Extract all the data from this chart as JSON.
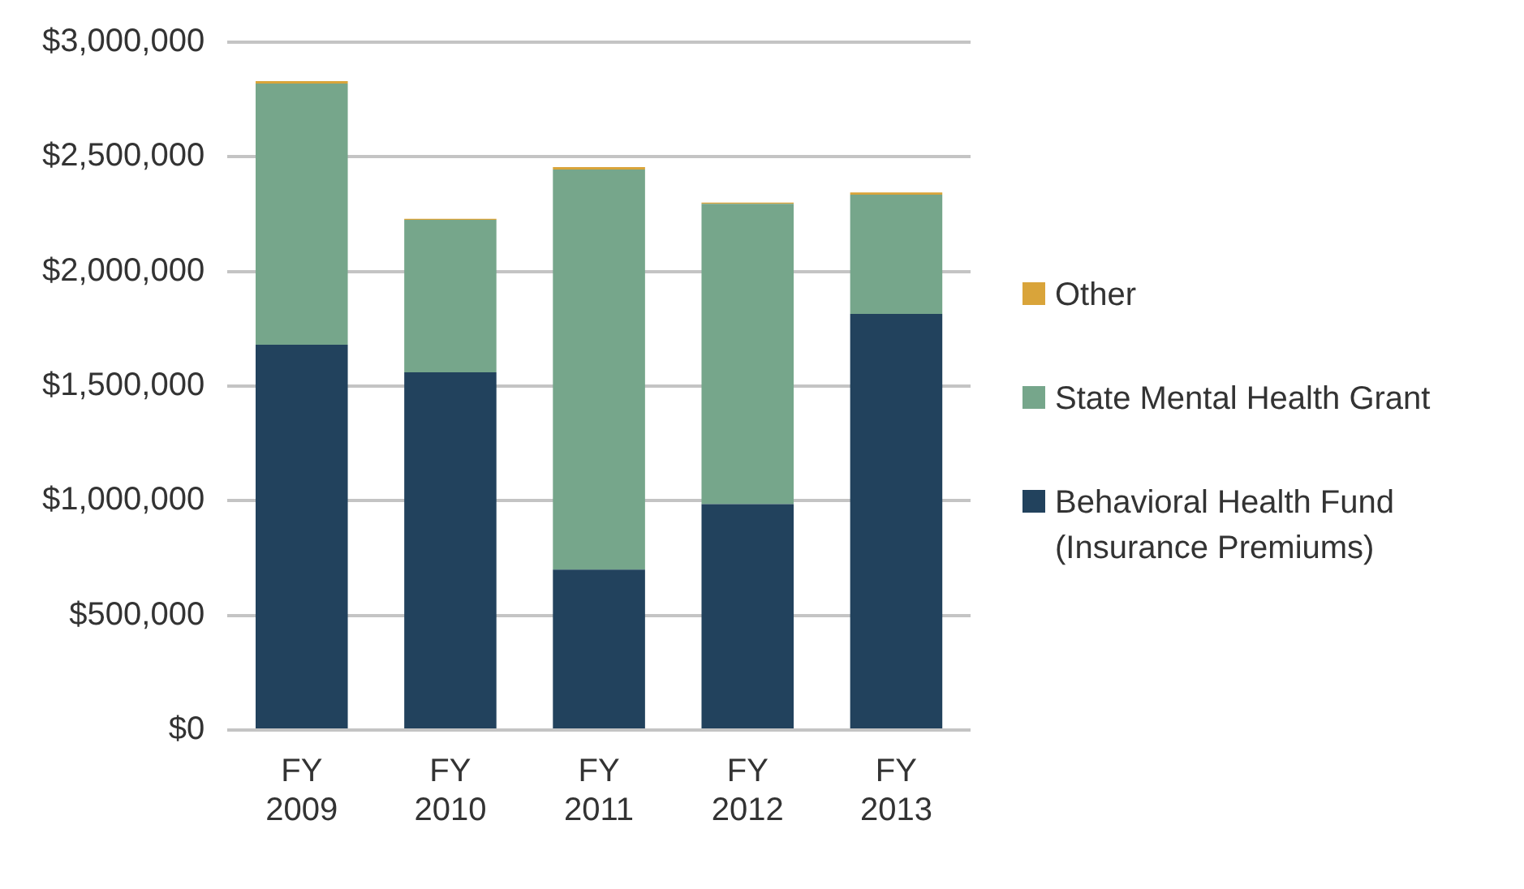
{
  "chart_data": {
    "type": "bar",
    "stacked": true,
    "categories": [
      "FY 2009",
      "FY 2010",
      "FY 2011",
      "FY 2012",
      "FY 2013"
    ],
    "series": [
      {
        "name": "Behavioral Health Fund (Insurance Premiums)",
        "color": "#22425d",
        "values": [
          1680000,
          1560000,
          700000,
          985000,
          1815000
        ]
      },
      {
        "name": "State Mental Health Grant",
        "color": "#76a68b",
        "values": [
          1140000,
          665000,
          1745000,
          1310000,
          520000
        ]
      },
      {
        "name": "Other",
        "color": "#d9a43a",
        "values": [
          10000,
          5000,
          10000,
          5000,
          10000
        ]
      }
    ],
    "ylim": [
      0,
      3000000
    ],
    "yticks": [
      {
        "value": 0,
        "label": "$0"
      },
      {
        "value": 500000,
        "label": "$500,000"
      },
      {
        "value": 1000000,
        "label": "$1,000,000"
      },
      {
        "value": 1500000,
        "label": "$1,500,000"
      },
      {
        "value": 2000000,
        "label": "$2,000,000"
      },
      {
        "value": 2500000,
        "label": "$2,500,000"
      },
      {
        "value": 3000000,
        "label": "$3,000,000"
      }
    ],
    "grid": "y",
    "legend": "right"
  }
}
